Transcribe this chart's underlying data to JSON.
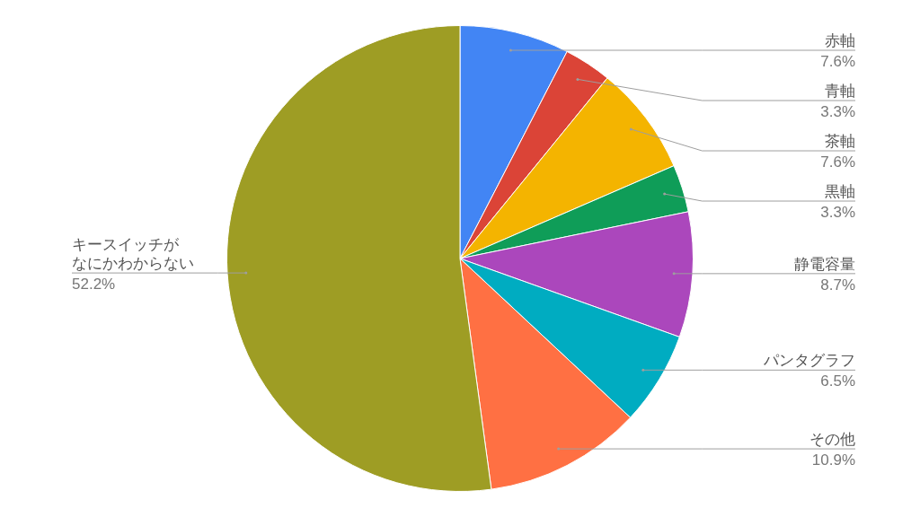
{
  "chart_data": {
    "type": "pie",
    "categories": [
      "赤軸",
      "青軸",
      "茶軸",
      "黒軸",
      "静電容量",
      "パンタグラフ",
      "その他",
      "キースイッチがなにかわからない"
    ],
    "values": [
      7.6,
      3.3,
      7.6,
      3.3,
      8.7,
      6.5,
      10.9,
      52.2
    ],
    "colors": [
      "#4285f4",
      "#db4437",
      "#f4b400",
      "#0f9d58",
      "#ab47bc",
      "#00acc1",
      "#ff7043",
      "#9e9d24"
    ],
    "value_labels": [
      "7.6%",
      "3.3%",
      "7.6%",
      "3.3%",
      "8.7%",
      "6.5%",
      "10.9%",
      "52.2%"
    ],
    "legend": false
  }
}
